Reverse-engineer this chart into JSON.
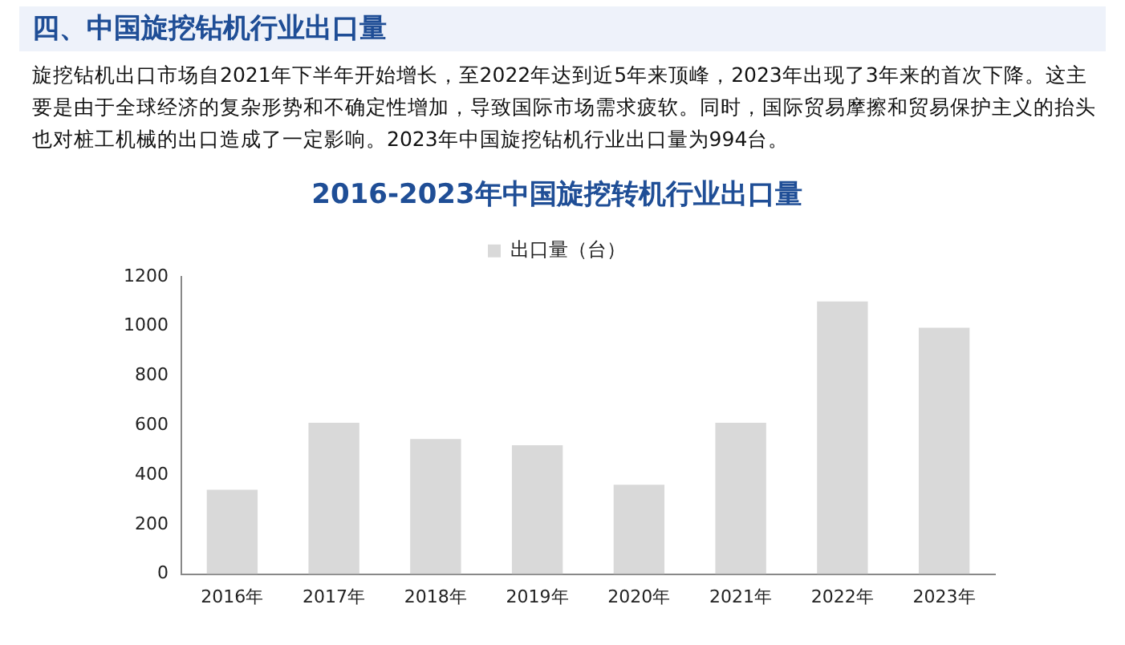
{
  "chart_data": {
    "type": "bar",
    "title": "2016-2023年中国旋挖转机行业出口量",
    "annotations": [
      "四、中国旋挖钻机行业出口量",
      "旋挖钻机出口市场自2021年下半年开始增长，至2022年达到近5年来顶峰，2023年出现了3年来的首次下降。这主要是由于全球经济的复杂形势和不确定性增加，导致国际市场需求疲软。同时，国际贸易摩擦和贸易保护主义的抬头也对桩工机械的出口造成了一定影响。2023年中国旋挖钻机行业出口量为994台。"
    ],
    "categories": [
      "2016年",
      "2017年",
      "2018年",
      "2019年",
      "2020年",
      "2021年",
      "2022年",
      "2023年"
    ],
    "series": [
      {
        "name": "出口量（台）",
        "color": "#d9d9d9",
        "values": [
          340,
          610,
          545,
          520,
          360,
          610,
          1100,
          994
        ]
      }
    ],
    "ylim": [
      0,
      1200
    ],
    "yticks": [
      0,
      200,
      400,
      600,
      800,
      1000,
      1200
    ],
    "grid": false,
    "legend": "top"
  }
}
